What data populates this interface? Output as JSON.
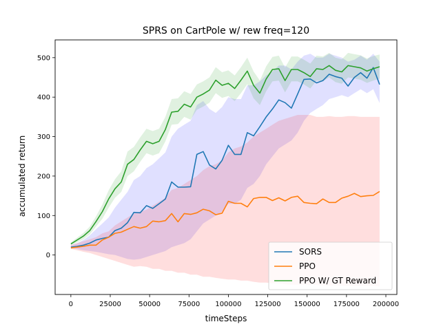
{
  "chart_data": {
    "type": "line",
    "title": "SPRS on CartPole w/ rew freq=120",
    "xlabel": "timeSteps",
    "ylabel": "accumulated return",
    "xlim": [
      -10000,
      207000
    ],
    "ylim": [
      -100,
      545
    ],
    "xticks": [
      0,
      25000,
      50000,
      75000,
      100000,
      125000,
      150000,
      175000,
      200000
    ],
    "yticks": [
      0,
      100,
      200,
      300,
      400,
      500
    ],
    "grid": false,
    "legend_position": "lower-right",
    "x": [
      0,
      4000,
      8000,
      12000,
      16000,
      20000,
      24000,
      28000,
      32000,
      36000,
      40000,
      44000,
      48000,
      52000,
      56000,
      60000,
      64000,
      68000,
      72000,
      76000,
      80000,
      84000,
      88000,
      92000,
      96000,
      100000,
      104000,
      108000,
      112000,
      116000,
      120000,
      124000,
      128000,
      132000,
      136000,
      140000,
      144000,
      148000,
      152000,
      156000,
      160000,
      164000,
      168000,
      172000,
      176000,
      180000,
      184000,
      188000,
      192000,
      196000
    ],
    "series": [
      {
        "name": "SORS",
        "color": "#1f77b4",
        "values": [
          20,
          22,
          25,
          30,
          38,
          42,
          45,
          62,
          68,
          82,
          108,
          107,
          125,
          118,
          130,
          142,
          185,
          172,
          172,
          173,
          255,
          262,
          228,
          218,
          240,
          278,
          255,
          255,
          310,
          302,
          325,
          350,
          370,
          393,
          386,
          372,
          408,
          445,
          446,
          436,
          442,
          458,
          452,
          448,
          428,
          450,
          462,
          448,
          475,
          432
        ],
        "band_lower": [
          18,
          15,
          12,
          10,
          8,
          5,
          2,
          0,
          -5,
          -10,
          -12,
          -10,
          -5,
          0,
          5,
          10,
          20,
          25,
          30,
          40,
          60,
          80,
          90,
          100,
          110,
          130,
          130,
          140,
          170,
          180,
          200,
          230,
          250,
          270,
          280,
          290,
          310,
          340,
          360,
          370,
          380,
          395,
          400,
          405,
          400,
          410,
          420,
          410,
          420,
          385
        ],
        "band_upper": [
          25,
          30,
          38,
          50,
          65,
          80,
          95,
          120,
          140,
          160,
          190,
          200,
          220,
          230,
          245,
          260,
          300,
          320,
          330,
          340,
          380,
          390,
          370,
          360,
          375,
          400,
          395,
          395,
          430,
          430,
          440,
          455,
          465,
          480,
          480,
          470,
          490,
          505,
          510,
          500,
          500,
          510,
          505,
          500,
          490,
          495,
          505,
          495,
          510,
          490
        ]
      },
      {
        "name": "PPO",
        "color": "#ff7f0e",
        "values": [
          18,
          20,
          22,
          25,
          25,
          38,
          45,
          55,
          58,
          65,
          72,
          68,
          72,
          86,
          84,
          87,
          105,
          84,
          105,
          103,
          107,
          116,
          112,
          102,
          106,
          136,
          131,
          131,
          122,
          143,
          146,
          146,
          138,
          145,
          137,
          146,
          149,
          133,
          131,
          130,
          142,
          133,
          133,
          144,
          149,
          156,
          148,
          150,
          151,
          161
        ],
        "band_lower": [
          15,
          12,
          8,
          5,
          0,
          -5,
          -10,
          -15,
          -20,
          -25,
          -30,
          -28,
          -30,
          -35,
          -35,
          -40,
          -40,
          -45,
          -45,
          -50,
          -50,
          -55,
          -55,
          -58,
          -60,
          -62,
          -62,
          -65,
          -65,
          -68,
          -70,
          -70,
          -72,
          -72,
          -74,
          -75,
          -75,
          -75,
          -76,
          -76,
          -77,
          -77,
          -77,
          -78,
          -78,
          -78,
          -78,
          -78,
          -78,
          -80
        ],
        "band_upper": [
          25,
          30,
          35,
          40,
          45,
          55,
          60,
          75,
          85,
          95,
          105,
          110,
          115,
          125,
          135,
          145,
          165,
          170,
          180,
          190,
          200,
          215,
          225,
          230,
          240,
          260,
          270,
          275,
          285,
          300,
          310,
          320,
          330,
          340,
          345,
          350,
          355,
          355,
          355,
          350,
          350,
          352,
          350,
          350,
          352,
          352,
          350,
          350,
          350,
          350
        ]
      },
      {
        "name": "PPO W/ GT Reward",
        "color": "#2ca02c",
        "values": [
          28,
          38,
          48,
          62,
          85,
          110,
          142,
          168,
          185,
          230,
          242,
          266,
          288,
          282,
          288,
          318,
          362,
          364,
          382,
          375,
          400,
          408,
          418,
          443,
          430,
          435,
          422,
          443,
          466,
          430,
          410,
          446,
          470,
          472,
          442,
          470,
          470,
          462,
          452,
          472,
          470,
          480,
          468,
          464,
          480,
          477,
          474,
          466,
          472,
          477
        ],
        "band_lower": [
          25,
          32,
          40,
          52,
          72,
          92,
          120,
          145,
          160,
          200,
          212,
          236,
          258,
          252,
          258,
          288,
          330,
          332,
          350,
          343,
          368,
          376,
          386,
          410,
          398,
          403,
          390,
          410,
          433,
          397,
          380,
          415,
          440,
          442,
          412,
          440,
          440,
          432,
          422,
          442,
          440,
          450,
          438,
          434,
          450,
          447,
          444,
          436,
          442,
          447
        ],
        "band_upper": [
          32,
          44,
          56,
          72,
          98,
          128,
          164,
          192,
          212,
          262,
          274,
          298,
          320,
          314,
          320,
          350,
          395,
          397,
          415,
          408,
          432,
          440,
          450,
          476,
          463,
          468,
          455,
          476,
          500,
          465,
          442,
          478,
          502,
          505,
          475,
          503,
          503,
          495,
          485,
          505,
          503,
          512,
          500,
          496,
          512,
          509,
          506,
          498,
          504,
          508
        ]
      }
    ]
  }
}
